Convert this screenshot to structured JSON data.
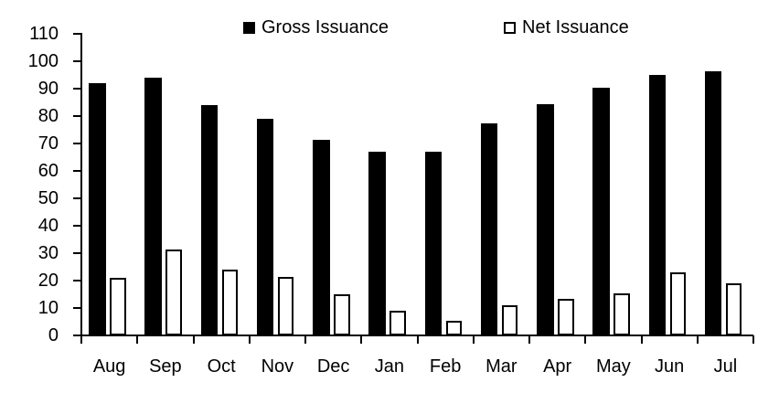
{
  "chart_data": {
    "type": "bar",
    "title": "",
    "xlabel": "",
    "ylabel": "",
    "categories": [
      "Aug",
      "Sep",
      "Oct",
      "Nov",
      "Dec",
      "Jan",
      "Feb",
      "Mar",
      "Apr",
      "May",
      "Jun",
      "Jul"
    ],
    "series": [
      {
        "name": "Gross Issuance",
        "values": [
          92,
          94,
          84,
          79,
          71.5,
          67,
          67,
          77.5,
          84.5,
          90.5,
          95,
          96.5
        ],
        "fill": "#000000",
        "border_color": "#000000"
      },
      {
        "name": "Net Issuance",
        "values": [
          21,
          31.5,
          24,
          21.5,
          15,
          9,
          5.5,
          11,
          13.5,
          15.5,
          23,
          19
        ],
        "fill": "#ffffff",
        "border_color": "#000000"
      }
    ],
    "ylim": [
      0,
      110
    ],
    "yticks": [
      0,
      10,
      20,
      30,
      40,
      50,
      60,
      70,
      80,
      90,
      100,
      110
    ],
    "grid": false,
    "legend_position": "top",
    "axis_color": "#000000",
    "background_color": "#ffffff"
  }
}
